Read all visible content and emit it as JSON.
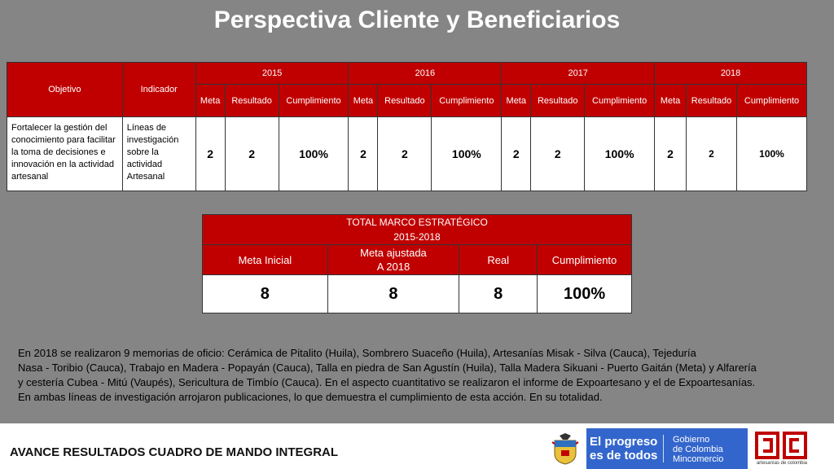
{
  "title": "Perspectiva Cliente y Beneficiarios",
  "table1": {
    "objetivo_header": "Objetivo",
    "indicador_header": "Indicador",
    "years": [
      "2015",
      "2016",
      "2017",
      "2018"
    ],
    "sub_headers": [
      "Meta",
      "Resultado",
      "Cumplimiento"
    ],
    "row": {
      "objetivo": "Fortalecer la gestión del conocimiento para facilitar la toma de decisiones e innovación en la actividad artesanal",
      "indicador": "Líneas de investigación sobre la actividad Artesanal",
      "y2015": {
        "meta": "2",
        "resultado": "2",
        "cumplimiento": "100%"
      },
      "y2016": {
        "meta": "2",
        "resultado": "2",
        "cumplimiento": "100%"
      },
      "y2017": {
        "meta": "2",
        "resultado": "2",
        "cumplimiento": "100%"
      },
      "y2018": {
        "meta": "2",
        "resultado": "2",
        "cumplimiento": "100%"
      }
    }
  },
  "table2": {
    "caption_line1": "TOTAL MARCO ESTRATÉGICO",
    "caption_line2": "2015-2018",
    "headers": {
      "meta_inicial": "Meta Inicial",
      "meta_ajustada_1": "Meta ajustada",
      "meta_ajustada_2": "A 2018",
      "real": "Real",
      "cumplimiento": "Cumplimiento"
    },
    "values": {
      "meta_inicial": "8",
      "meta_ajustada": "8",
      "real": "8",
      "cumplimiento": "100%"
    }
  },
  "paragraph": {
    "line1": "En 2018 se realizaron 9 memorias de oficio: Cerámica de Pitalito  (Huila), Sombrero Suaceño (Huila), Artesanías Misak - Silva (Cauca), Tejeduría",
    "line2": "Nasa - Toribio (Cauca), Trabajo en Madera - Popayán (Cauca), Talla en piedra de San Agustín (Huila), Talla Madera Sikuani - Puerto Gaitán (Meta) y Alfarería",
    "line3": "y cestería Cubea - Mitú (Vaupés), Sericultura de Timbío (Cauca). En el aspecto cuantitativo se realizaron el informe de Expoartesano y el de Expoartesanías.",
    "line4": "En ambas líneas de investigación arrojaron publicaciones, lo que demuestra el cumplimiento de esta acción. En su totalidad."
  },
  "footer": {
    "title": "AVANCE RESULTADOS CUADRO DE MANDO INTEGRAL",
    "slogan_1": "El progreso",
    "slogan_2": "es de todos",
    "gov_1": "Gobierno",
    "gov_2": "de Colombia",
    "gov_3": "Mincomercio",
    "logo_text": "artesanías de colombia",
    "shield_icon": "colombia-coat-of-arms-icon",
    "logo_icon": "artesanias-de-colombia-logo"
  },
  "colors": {
    "header_red": "#c00000",
    "background_gray": "#858585",
    "gov_blue": "#3366cc"
  }
}
